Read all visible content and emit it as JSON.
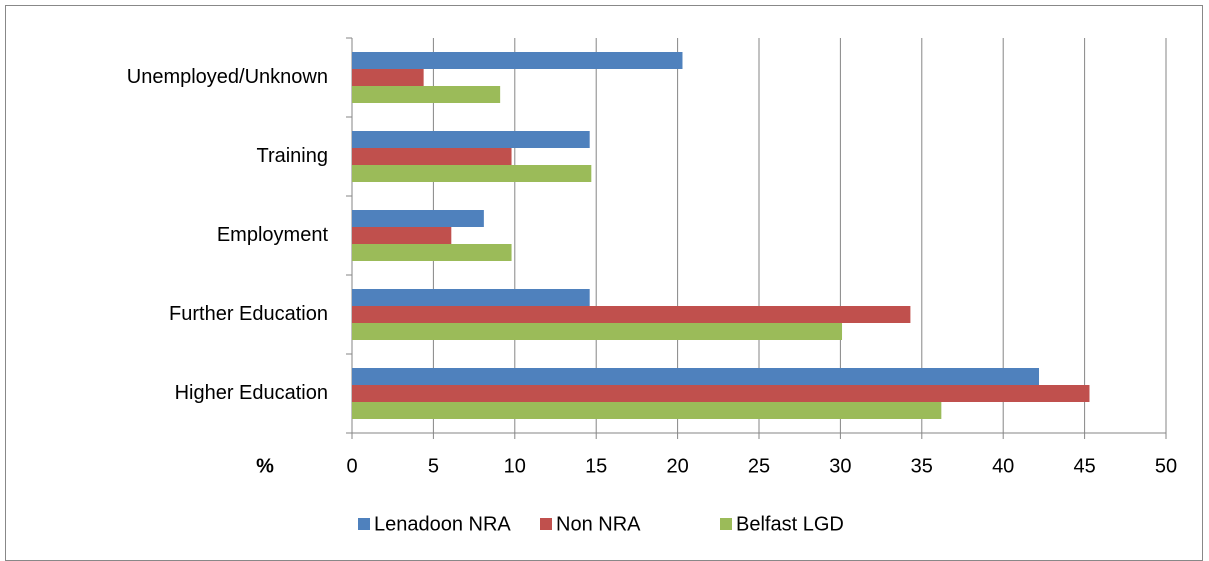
{
  "chart_data": {
    "type": "hbar",
    "x_label": "%",
    "categories": [
      "Unemployed/Unknown",
      "Training",
      "Employment",
      "Further Education",
      "Higher Education"
    ],
    "series": [
      {
        "name": "Lenadoon NRA",
        "color": "#4f81bd",
        "values": [
          20.3,
          14.6,
          8.1,
          14.6,
          42.2
        ]
      },
      {
        "name": "Non NRA",
        "color": "#c0504d",
        "values": [
          4.4,
          9.8,
          6.1,
          34.3,
          45.3
        ]
      },
      {
        "name": "Belfast LGD",
        "color": "#9bbb59",
        "values": [
          9.1,
          14.7,
          9.8,
          30.1,
          36.2
        ]
      }
    ],
    "xlim": [
      0,
      50
    ],
    "xticks": [
      0,
      5,
      10,
      15,
      20,
      25,
      30,
      35,
      40,
      45,
      50
    ],
    "grid": true,
    "legend": "bottom"
  }
}
